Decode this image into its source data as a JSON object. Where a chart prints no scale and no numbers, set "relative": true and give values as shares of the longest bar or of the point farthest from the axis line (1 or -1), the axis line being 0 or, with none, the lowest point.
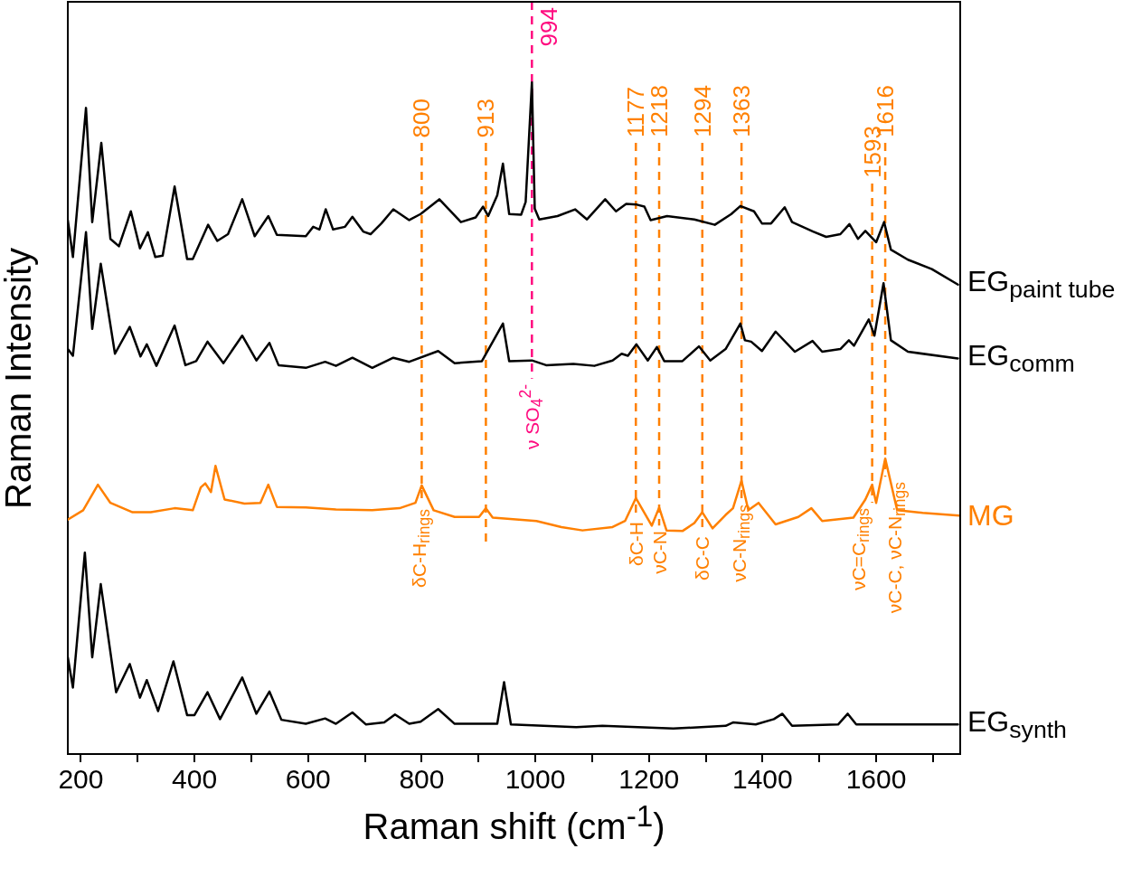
{
  "chart_data": {
    "type": "line",
    "relative": true,
    "xlabel": "Raman shift (cm$^{-1}$)",
    "ylabel": "Raman Intensity",
    "xlim": [
      177,
      1748
    ],
    "xticks": [
      200,
      {
        "value": 300,
        "label": null
      },
      400,
      {
        "value": 500,
        "label": null
      },
      600,
      {
        "value": 700,
        "label": null
      },
      800,
      {
        "value": 900,
        "label": null
      },
      1000,
      {
        "value": 1100,
        "label": null
      },
      1200,
      {
        "value": 1300,
        "label": null
      },
      1400,
      {
        "value": 1500,
        "label": null
      },
      1600,
      {
        "value": 1700,
        "label": null
      }
    ],
    "marker": "none",
    "line_style": "solid",
    "legend": false,
    "grid": false,
    "series": [
      {
        "name": "EG$_{paint tube}$",
        "color": "#000000",
        "x": [
          177,
          186,
          209,
          220,
          236,
          252,
          267,
          288,
          304,
          318,
          331,
          344,
          365,
          387,
          397,
          424,
          440,
          459,
          484,
          506,
          530,
          545,
          596,
          609,
          620,
          631,
          644,
          665,
          678,
          697,
          710,
          729,
          750,
          778,
          798,
          831,
          869,
          895,
          908,
          917,
          933,
          943,
          954,
          975,
          983,
          994,
          999,
          1007,
          1039,
          1070,
          1091,
          1123,
          1142,
          1160,
          1179,
          1192,
          1203,
          1232,
          1280,
          1316,
          1345,
          1361,
          1385,
          1399,
          1415,
          1439,
          1452,
          1489,
          1512,
          1537,
          1553,
          1568,
          1581,
          1600,
          1614,
          1626,
          1656,
          1698,
          1744
        ],
        "values": [
          0.795,
          0.74,
          0.962,
          0.792,
          0.91,
          0.767,
          0.756,
          0.808,
          0.753,
          0.777,
          0.74,
          0.742,
          0.845,
          0.737,
          0.737,
          0.788,
          0.764,
          0.774,
          0.826,
          0.771,
          0.801,
          0.773,
          0.771,
          0.785,
          0.781,
          0.811,
          0.781,
          0.785,
          0.8,
          0.778,
          0.774,
          0.79,
          0.811,
          0.795,
          0.804,
          0.826,
          0.792,
          0.799,
          0.815,
          0.801,
          0.832,
          0.879,
          0.804,
          0.803,
          0.822,
          1.0,
          0.812,
          0.796,
          0.801,
          0.811,
          0.796,
          0.826,
          0.808,
          0.819,
          0.818,
          0.815,
          0.795,
          0.801,
          0.796,
          0.788,
          0.804,
          0.816,
          0.808,
          0.79,
          0.79,
          0.814,
          0.792,
          0.778,
          0.77,
          0.774,
          0.789,
          0.767,
          0.779,
          0.762,
          0.792,
          0.751,
          0.736,
          0.722,
          0.699
        ]
      },
      {
        "name": "EG$_{comm}$",
        "color": "#000000",
        "x": [
          177,
          186,
          209,
          220,
          235,
          260,
          286,
          305,
          316,
          333,
          365,
          384,
          403,
          423,
          451,
          484,
          509,
          532,
          548,
          596,
          630,
          649,
          678,
          713,
          750,
          778,
          829,
          858,
          906,
          943,
          954,
          994,
          1019,
          1067,
          1104,
          1136,
          1152,
          1163,
          1178,
          1198,
          1214,
          1227,
          1259,
          1288,
          1308,
          1335,
          1361,
          1369,
          1380,
          1399,
          1423,
          1457,
          1488,
          1505,
          1537,
          1552,
          1561,
          1587,
          1597,
          1613,
          1626,
          1656,
          1744
        ],
        "values": [
          0.603,
          0.593,
          0.777,
          0.633,
          0.73,
          0.596,
          0.636,
          0.592,
          0.61,
          0.578,
          0.638,
          0.579,
          0.585,
          0.614,
          0.582,
          0.623,
          0.586,
          0.612,
          0.579,
          0.575,
          0.584,
          0.578,
          0.59,
          0.575,
          0.59,
          0.584,
          0.6,
          0.582,
          0.585,
          0.641,
          0.585,
          0.586,
          0.579,
          0.581,
          0.578,
          0.586,
          0.596,
          0.593,
          0.61,
          0.586,
          0.606,
          0.585,
          0.585,
          0.607,
          0.586,
          0.603,
          0.641,
          0.616,
          0.614,
          0.6,
          0.629,
          0.599,
          0.615,
          0.599,
          0.603,
          0.616,
          0.608,
          0.647,
          0.623,
          0.701,
          0.616,
          0.599,
          0.589
        ]
      },
      {
        "name": "MG",
        "color": "#ff8000",
        "x": [
          177,
          204,
          230,
          252,
          291,
          323,
          365,
          397,
          411,
          419,
          429,
          437,
          453,
          488,
          516,
          530,
          545,
          596,
          649,
          713,
          761,
          789,
          800,
          821,
          858,
          901,
          913,
          925,
          1002,
          1046,
          1083,
          1136,
          1158,
          1177,
          1205,
          1218,
          1231,
          1259,
          1280,
          1294,
          1312,
          1335,
          1348,
          1363,
          1375,
          1393,
          1423,
          1463,
          1486,
          1505,
          1560,
          1581,
          1593,
          1600,
          1616,
          1637,
          1682,
          1746
        ],
        "values": [
          0.349,
          0.363,
          0.401,
          0.374,
          0.36,
          0.36,
          0.366,
          0.363,
          0.397,
          0.403,
          0.39,
          0.429,
          0.379,
          0.373,
          0.374,
          0.401,
          0.368,
          0.367,
          0.364,
          0.363,
          0.366,
          0.374,
          0.4,
          0.363,
          0.353,
          0.353,
          0.366,
          0.352,
          0.347,
          0.338,
          0.333,
          0.338,
          0.347,
          0.381,
          0.34,
          0.367,
          0.333,
          0.332,
          0.344,
          0.36,
          0.336,
          0.356,
          0.366,
          0.407,
          0.363,
          0.374,
          0.342,
          0.353,
          0.366,
          0.347,
          0.352,
          0.379,
          0.401,
          0.374,
          0.44,
          0.363,
          0.359,
          0.355
        ]
      },
      {
        "name": "EG$_{synth}$",
        "color": "#000000",
        "x": [
          177,
          186,
          207,
          220,
          235,
          262,
          286,
          304,
          316,
          336,
          363,
          387,
          400,
          423,
          445,
          484,
          509,
          532,
          553,
          596,
          630,
          649,
          678,
          702,
          734,
          753,
          778,
          798,
          829,
          858,
          933,
          945,
          957,
          1072,
          1118,
          1243,
          1335,
          1348,
          1388,
          1420,
          1435,
          1452,
          1533,
          1550,
          1565,
          1744
        ],
        "values": [
          0.144,
          0.099,
          0.3,
          0.144,
          0.253,
          0.092,
          0.134,
          0.084,
          0.11,
          0.064,
          0.138,
          0.058,
          0.058,
          0.092,
          0.052,
          0.114,
          0.06,
          0.093,
          0.051,
          0.045,
          0.053,
          0.045,
          0.062,
          0.044,
          0.047,
          0.059,
          0.045,
          0.048,
          0.067,
          0.045,
          0.045,
          0.107,
          0.044,
          0.04,
          0.042,
          0.038,
          0.042,
          0.047,
          0.044,
          0.052,
          0.06,
          0.042,
          0.044,
          0.06,
          0.044,
          0.044
        ]
      }
    ],
    "ref_lines": [
      {
        "axis": "x",
        "value": 800,
        "label": "800",
        "color": "#ff8000",
        "line_style": "dashed"
      },
      {
        "axis": "x",
        "value": 913,
        "label": "913",
        "color": "#ff8000",
        "line_style": "dashed"
      },
      {
        "axis": "x",
        "value": 994,
        "label": "994",
        "color": "#ff0a7f",
        "line_style": "dashed"
      },
      {
        "axis": "x",
        "value": 1177,
        "label": "1177",
        "color": "#ff8000",
        "line_style": "dashed"
      },
      {
        "axis": "x",
        "value": 1218,
        "label": "1218",
        "color": "#ff8000",
        "line_style": "dashed"
      },
      {
        "axis": "x",
        "value": 1294,
        "label": "1294",
        "color": "#ff8000",
        "line_style": "dashed"
      },
      {
        "axis": "x",
        "value": 1363,
        "label": "1363",
        "color": "#ff8000",
        "line_style": "dashed"
      },
      {
        "axis": "x",
        "value": 1593,
        "label": "1593",
        "color": "#ff8000",
        "line_style": "dashed"
      },
      {
        "axis": "x",
        "value": 1616,
        "label": "1616",
        "color": "#ff8000",
        "line_style": "dashed"
      }
    ],
    "annotations": [
      {
        "text": "δC-H$_{rings}$",
        "x": 800,
        "y": 0.4
      },
      {
        "text": "ν SO$_{4}$$^{2-}$",
        "x": 994,
        "y": 0.586
      },
      {
        "text": "δC-H",
        "x": 1177,
        "y": 0.381
      },
      {
        "text": "νC-N",
        "x": 1218,
        "y": 0.367
      },
      {
        "text": "δC-C",
        "x": 1294,
        "y": 0.36
      },
      {
        "text": "νC-N$_{rings}$",
        "x": 1363,
        "y": 0.407
      },
      {
        "text": "νC=C$_{rings}$",
        "x": 1593,
        "y": 0.401
      },
      {
        "text": "νC-C, νC-N$_{rings}$",
        "x": 1616,
        "y": 0.44
      }
    ]
  }
}
